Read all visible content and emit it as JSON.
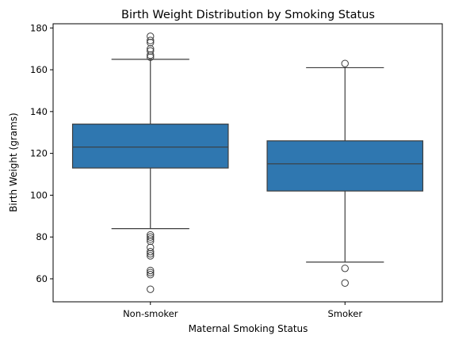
{
  "chart_data": {
    "type": "box",
    "title": "Birth Weight Distribution by Smoking Status",
    "xlabel": "Maternal Smoking Status",
    "ylabel": "Birth Weight (grams)",
    "categories": [
      "Non-smoker",
      "Smoker"
    ],
    "ylim": [
      49,
      182
    ],
    "yticks": [
      60,
      80,
      100,
      120,
      140,
      160,
      180
    ],
    "grid": false,
    "box_color": "#2f77b0",
    "line_color": "#3d3d3d",
    "boxes": [
      {
        "name": "Non-smoker",
        "whisker_low": 84,
        "q1": 113,
        "median": 123,
        "q3": 134,
        "whisker_high": 165,
        "outliers": [
          55,
          62,
          63,
          64,
          71,
          72,
          73,
          75,
          78,
          79,
          80,
          81,
          166,
          167,
          169,
          170,
          173,
          174,
          176
        ]
      },
      {
        "name": "Smoker",
        "whisker_low": 68,
        "q1": 102,
        "median": 115,
        "q3": 126,
        "whisker_high": 161,
        "outliers": [
          58,
          65,
          163
        ]
      }
    ]
  }
}
